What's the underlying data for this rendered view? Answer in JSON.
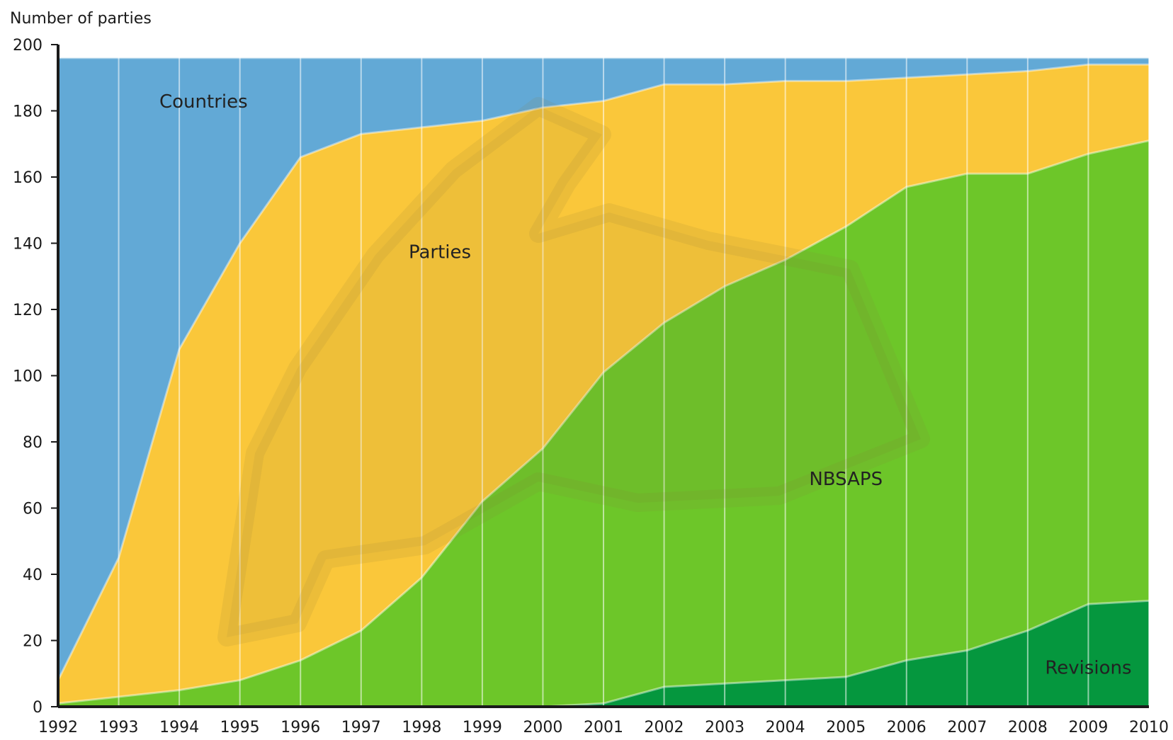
{
  "chart_data": {
    "type": "area",
    "title": "",
    "ylabel": "Number of parties",
    "xlabel": "",
    "x": [
      1992,
      1993,
      1994,
      1995,
      1996,
      1997,
      1998,
      1999,
      2000,
      2001,
      2002,
      2003,
      2004,
      2005,
      2006,
      2007,
      2008,
      2009,
      2010
    ],
    "xlim": [
      1992,
      2010
    ],
    "ylim": [
      0,
      200
    ],
    "yticks": [
      0,
      20,
      40,
      60,
      80,
      100,
      120,
      140,
      160,
      180,
      200
    ],
    "grid": "vertical lines at each year",
    "legend": "none (labels placed inside areas)",
    "series": [
      {
        "name": "Countries",
        "color": "#62A9D6",
        "values": [
          196,
          196,
          196,
          196,
          196,
          196,
          196,
          196,
          196,
          196,
          196,
          196,
          196,
          196,
          196,
          196,
          196,
          196,
          196
        ]
      },
      {
        "name": "Parties",
        "color": "#FAC73A",
        "values": [
          8,
          45,
          108,
          140,
          166,
          173,
          175,
          177,
          181,
          183,
          188,
          188,
          189,
          189,
          190,
          191,
          192,
          194,
          194
        ]
      },
      {
        "name": "NBSAPS",
        "color": "#6DC629",
        "values": [
          1,
          3,
          5,
          8,
          14,
          23,
          39,
          62,
          78,
          101,
          116,
          127,
          135,
          145,
          157,
          161,
          161,
          167,
          171
        ]
      },
      {
        "name": "Revisions",
        "color": "#05973E",
        "values": [
          0,
          0,
          0,
          0,
          0,
          0,
          0,
          0,
          0,
          1,
          6,
          7,
          8,
          9,
          14,
          17,
          23,
          31,
          32
        ]
      }
    ],
    "labels": {
      "countries": "Countries",
      "parties": "Parties",
      "nbsaps": "NBSAPS",
      "revisions": "Revisions"
    }
  }
}
